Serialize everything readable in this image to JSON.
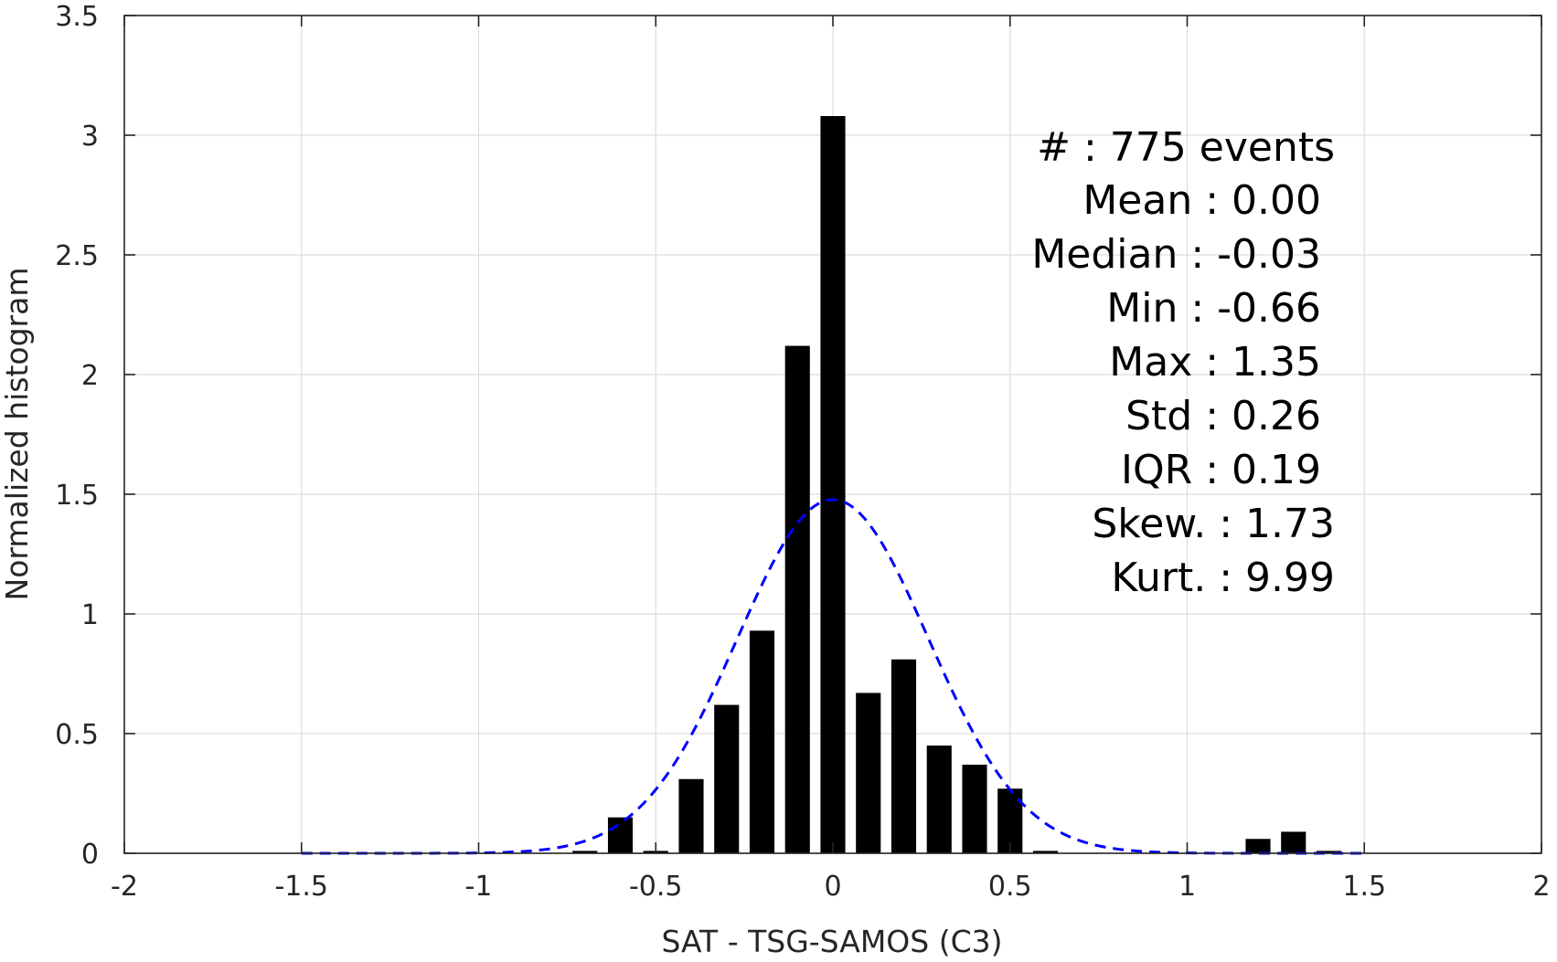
{
  "chart_data": {
    "type": "bar",
    "title": "",
    "xlabel": "SAT - TSG-SAMOS (C3)",
    "ylabel": "Normalized histogram",
    "xlim": [
      -2,
      2
    ],
    "ylim": [
      0,
      3.5
    ],
    "xticks": [
      -2,
      -1.5,
      -1,
      -0.5,
      0,
      0.5,
      1,
      1.5,
      2
    ],
    "yticks": [
      0,
      0.5,
      1,
      1.5,
      2,
      2.5,
      3,
      3.5
    ],
    "xtick_labels": [
      "-2",
      "-1.5",
      "-1",
      "-0.5",
      "0",
      "0.5",
      "1",
      "1.5",
      "2"
    ],
    "ytick_labels": [
      "0",
      "0.5",
      "1",
      "1.5",
      "2",
      "2.5",
      "3",
      "3.5"
    ],
    "grid": true,
    "bar_color": "#000000",
    "bar_width": 0.07,
    "bars": [
      {
        "x": -0.7,
        "y": 0.01
      },
      {
        "x": -0.6,
        "y": 0.15
      },
      {
        "x": -0.5,
        "y": 0.01
      },
      {
        "x": -0.4,
        "y": 0.31
      },
      {
        "x": -0.3,
        "y": 0.62
      },
      {
        "x": -0.2,
        "y": 0.93
      },
      {
        "x": -0.1,
        "y": 2.12
      },
      {
        "x": 0.0,
        "y": 3.08
      },
      {
        "x": 0.1,
        "y": 0.67
      },
      {
        "x": 0.2,
        "y": 0.81
      },
      {
        "x": 0.3,
        "y": 0.45
      },
      {
        "x": 0.4,
        "y": 0.37
      },
      {
        "x": 0.5,
        "y": 0.27
      },
      {
        "x": 0.6,
        "y": 0.01
      },
      {
        "x": 1.2,
        "y": 0.06
      },
      {
        "x": 1.3,
        "y": 0.09
      },
      {
        "x": 1.4,
        "y": 0.01
      }
    ],
    "fit_curve": {
      "style": "dashed",
      "color": "#0000ff",
      "mean": 0.0,
      "std": 0.27,
      "x_range": [
        -1.5,
        1.5
      ]
    }
  },
  "stats": {
    "count": "#  : 775 events",
    "mean": "Mean : 0.00",
    "median": "Median : -0.03",
    "min": "Min : -0.66",
    "max": "Max : 1.35",
    "std": "Std : 0.26",
    "iqr": "IQR : 0.19",
    "skew": "Skew. : 1.73",
    "kurt": "Kurt. : 9.99"
  }
}
